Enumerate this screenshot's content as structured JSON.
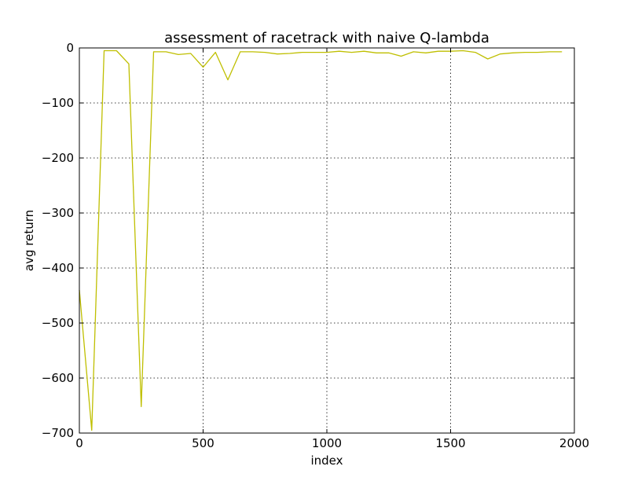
{
  "chart_data": {
    "type": "line",
    "title": "assessment of racetrack with naive Q-lambda",
    "xlabel": "index",
    "ylabel": "avg return",
    "xlim": [
      0,
      2000
    ],
    "ylim": [
      -700,
      0
    ],
    "grid": true,
    "x_ticks": [
      0,
      500,
      1000,
      1500,
      2000
    ],
    "x_tick_labels": [
      "0",
      "500",
      "1000",
      "1500",
      "2000"
    ],
    "y_ticks": [
      0,
      -100,
      -200,
      -300,
      -400,
      -500,
      -600,
      -700
    ],
    "y_tick_labels": [
      "0",
      "−100",
      "−200",
      "−300",
      "−400",
      "−500",
      "−600",
      "−700"
    ],
    "series": [
      {
        "color": "#bfbf00",
        "x": [
          0,
          50,
          100,
          150,
          200,
          250,
          300,
          350,
          400,
          450,
          500,
          550,
          600,
          650,
          700,
          750,
          800,
          850,
          900,
          950,
          1000,
          1050,
          1100,
          1150,
          1200,
          1250,
          1300,
          1350,
          1400,
          1450,
          1500,
          1550,
          1600,
          1650,
          1700,
          1750,
          1800,
          1850,
          1900,
          1950
        ],
        "y": [
          -440,
          -695,
          -5,
          -5,
          -29,
          -652,
          -7,
          -7,
          -12,
          -10,
          -35,
          -8,
          -58,
          -7,
          -7,
          -8,
          -11,
          -10,
          -8,
          -8,
          -8,
          -6,
          -8,
          -6,
          -9,
          -9,
          -15,
          -7,
          -9,
          -6,
          -6,
          -5,
          -8,
          -20,
          -11,
          -9,
          -8,
          -8,
          -7,
          -7
        ]
      }
    ]
  }
}
